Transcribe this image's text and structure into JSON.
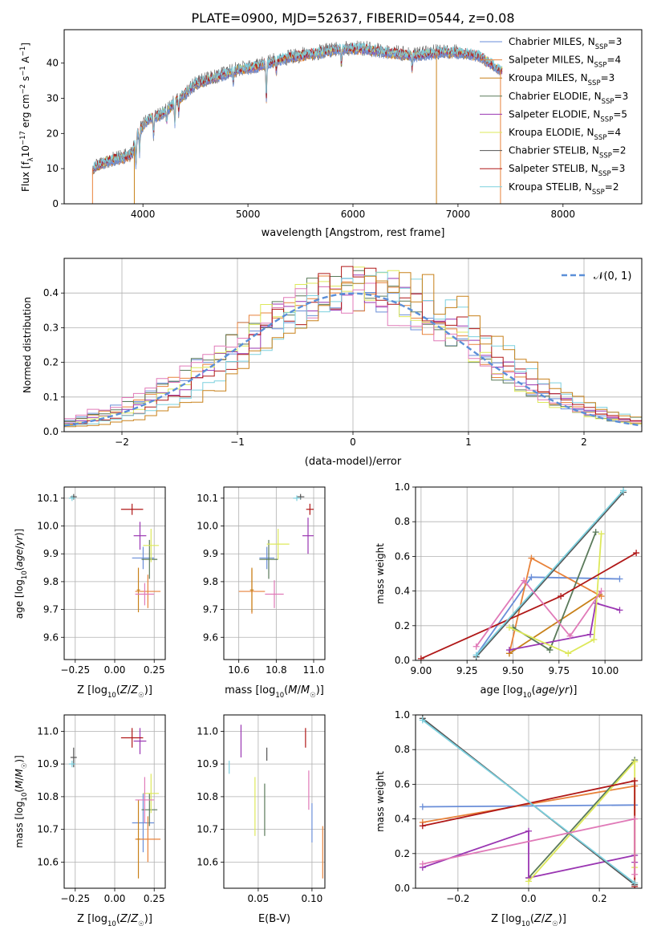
{
  "figure": {
    "title": "PLATE=0900, MJD=52637, FIBERID=0544, z=0.08"
  },
  "colors": {
    "Chabrier MILES": "#6a8ed8",
    "Salpeter MILES": "#e8823a",
    "Kroupa MILES": "#c8811a",
    "Chabrier ELODIE": "#5a7a5a",
    "Salpeter ELODIE": "#9a36b2",
    "Kroupa ELODIE": "#dde85a",
    "Chabrier STELIB": "#555555",
    "Salpeter STELIB": "#b01818",
    "Kroupa STELIB": "#7cd0de",
    "pink": "#e07ab8",
    "gauss": "#5b8fd8"
  },
  "chart_data": [
    {
      "id": "spectrum",
      "type": "line",
      "title": "PLATE=0900, MJD=52637, FIBERID=0544, z=0.08",
      "xlabel": "wavelength [Angstrom, rest frame]",
      "ylabel": "Flux [f_λ 10^-17 erg cm^-2 s^-1 A^-1]",
      "xlim": [
        3250,
        8750
      ],
      "ylim": [
        0,
        49.5
      ],
      "xticks": [
        4000,
        5000,
        6000,
        7000,
        8000
      ],
      "yticks": [
        0,
        10,
        20,
        30,
        40
      ],
      "grid": false,
      "legend_position": "top-right",
      "legend": [
        {
          "label": "Chabrier MILES, N",
          "sub": "SSP",
          "suffix": "=3",
          "color": "#6a8ed8"
        },
        {
          "label": "Salpeter MILES, N",
          "sub": "SSP",
          "suffix": "=4",
          "color": "#e8823a"
        },
        {
          "label": "Kroupa MILES, N",
          "sub": "SSP",
          "suffix": "=3",
          "color": "#c8811a"
        },
        {
          "label": "Chabrier ELODIE, N",
          "sub": "SSP",
          "suffix": "=3",
          "color": "#5a7a5a"
        },
        {
          "label": "Salpeter ELODIE, N",
          "sub": "SSP",
          "suffix": "=5",
          "color": "#9a36b2"
        },
        {
          "label": "Kroupa ELODIE, N",
          "sub": "SSP",
          "suffix": "=4",
          "color": "#dde85a"
        },
        {
          "label": "Chabrier STELIB, N",
          "sub": "SSP",
          "suffix": "=2",
          "color": "#555555"
        },
        {
          "label": "Salpeter STELIB, N",
          "sub": "SSP",
          "suffix": "=3",
          "color": "#b01818"
        },
        {
          "label": "Kroupa STELIB, N",
          "sub": "SSP",
          "suffix": "=2",
          "color": "#7cd0de"
        }
      ],
      "continuum": [
        [
          3520,
          10
        ],
        [
          3650,
          12
        ],
        [
          3800,
          13
        ],
        [
          3900,
          14
        ],
        [
          3950,
          20
        ],
        [
          4050,
          24
        ],
        [
          4150,
          25
        ],
        [
          4250,
          27
        ],
        [
          4300,
          29
        ],
        [
          4400,
          31
        ],
        [
          4500,
          34
        ],
        [
          4700,
          36
        ],
        [
          4900,
          38
        ],
        [
          5100,
          39
        ],
        [
          5300,
          41
        ],
        [
          5500,
          42
        ],
        [
          5700,
          43
        ],
        [
          5900,
          44
        ],
        [
          6100,
          44
        ],
        [
          6300,
          43
        ],
        [
          6600,
          42
        ],
        [
          6800,
          43
        ],
        [
          7000,
          43
        ],
        [
          7200,
          42
        ],
        [
          7400,
          38
        ]
      ],
      "absorption": [
        [
          3934,
          7
        ],
        [
          3968,
          6
        ],
        [
          4101,
          5
        ],
        [
          4226,
          3
        ],
        [
          4304,
          6
        ],
        [
          4340,
          4
        ],
        [
          4861,
          3
        ],
        [
          5175,
          10
        ],
        [
          5270,
          3
        ],
        [
          5890,
          4
        ],
        [
          6563,
          4
        ]
      ]
    },
    {
      "id": "residual-histogram",
      "type": "histogram",
      "xlabel": "(data-model)/error",
      "ylabel": "Normed distribution",
      "xlim": [
        -2.5,
        2.5
      ],
      "ylim": [
        0,
        0.5
      ],
      "xticks": [
        -2,
        -1,
        0,
        1,
        2
      ],
      "xtick_labels": [
        "−2",
        "−1",
        "0",
        "1",
        "2"
      ],
      "yticks": [
        0.0,
        0.1,
        0.2,
        0.3,
        0.4
      ],
      "grid": true,
      "legend_position": "top-right",
      "gauss_label": "𝒩(0, 1)",
      "bin_width": 0.1,
      "model_centers": [
        -0.08,
        -0.05,
        -0.1,
        0.05,
        -0.02,
        -0.12,
        0.12,
        0.22,
        0.3
      ],
      "model_scales": [
        1.02,
        1.0,
        0.98,
        1.0,
        0.93,
        1.05,
        0.95,
        0.96,
        0.92
      ]
    },
    {
      "id": "age-vs-metallicity",
      "type": "scatter",
      "xlabel": "Z [log10(Z/Z☉)]",
      "ylabel": "age  [log10(age/yr)]",
      "xlim": [
        -0.32,
        0.32
      ],
      "ylim": [
        9.52,
        10.14
      ],
      "xticks": [
        -0.25,
        0.0,
        0.25
      ],
      "xtick_labels": [
        "−0.25",
        "0.00",
        "0.25"
      ],
      "yticks": [
        9.6,
        9.7,
        9.8,
        9.9,
        10.0,
        10.1
      ],
      "grid": true,
      "points": [
        {
          "x": 0.18,
          "xerr": 0.07,
          "y": 9.885,
          "yerr": 0.04,
          "color": "#6a8ed8"
        },
        {
          "x": 0.21,
          "xerr": 0.08,
          "y": 9.765,
          "yerr": 0.06,
          "color": "#e8823a"
        },
        {
          "x": 0.15,
          "xerr": 0.01,
          "y": 9.77,
          "yerr": 0.08,
          "color": "#c8811a"
        },
        {
          "x": 0.22,
          "xerr": 0.05,
          "y": 9.88,
          "yerr": 0.07,
          "color": "#5a7a5a"
        },
        {
          "x": 0.16,
          "xerr": 0.04,
          "y": 9.965,
          "yerr": 0.05,
          "color": "#9a36b2"
        },
        {
          "x": 0.23,
          "xerr": 0.05,
          "y": 9.93,
          "yerr": 0.06,
          "color": "#dde85a"
        },
        {
          "x": -0.26,
          "xerr": 0.02,
          "y": 10.105,
          "yerr": 0.01,
          "color": "#555555"
        },
        {
          "x": 0.11,
          "xerr": 0.07,
          "y": 10.06,
          "yerr": 0.02,
          "color": "#b01818"
        },
        {
          "x": -0.27,
          "xerr": 0.02,
          "y": 10.1,
          "yerr": 0.01,
          "color": "#7cd0de"
        },
        {
          "x": 0.19,
          "xerr": 0.06,
          "y": 9.755,
          "yerr": 0.04,
          "color": "#e07ab8"
        }
      ]
    },
    {
      "id": "age-vs-mass",
      "type": "scatter",
      "xlabel": "mass [log10(M/M☉)]",
      "xlim": [
        10.52,
        11.06
      ],
      "ylim": [
        9.52,
        10.14
      ],
      "xticks": [
        10.6,
        10.8,
        11.0
      ],
      "xtick_labels": [
        "10.6",
        "10.8",
        "11.0"
      ],
      "yticks": [
        9.6,
        9.7,
        9.8,
        9.9,
        10.0,
        10.1
      ],
      "grid": true,
      "points": [
        {
          "x": 10.75,
          "xerr": 0.04,
          "y": 9.885,
          "yerr": 0.04,
          "color": "#6a8ed8"
        },
        {
          "x": 10.67,
          "xerr": 0.07,
          "y": 9.765,
          "yerr": 0.08,
          "color": "#e8823a"
        },
        {
          "x": 10.67,
          "xerr": 0.01,
          "y": 9.77,
          "yerr": 0.08,
          "color": "#c8811a"
        },
        {
          "x": 10.76,
          "xerr": 0.05,
          "y": 9.88,
          "yerr": 0.07,
          "color": "#5a7a5a"
        },
        {
          "x": 10.97,
          "xerr": 0.03,
          "y": 9.965,
          "yerr": 0.065,
          "color": "#9a36b2"
        },
        {
          "x": 10.81,
          "xerr": 0.06,
          "y": 9.935,
          "yerr": 0.055,
          "color": "#dde85a"
        },
        {
          "x": 10.93,
          "xerr": 0.02,
          "y": 10.105,
          "yerr": 0.01,
          "color": "#555555"
        },
        {
          "x": 10.98,
          "xerr": 0.02,
          "y": 10.06,
          "yerr": 0.02,
          "color": "#b01818"
        },
        {
          "x": 10.91,
          "xerr": 0.02,
          "y": 10.1,
          "yerr": 0.01,
          "color": "#7cd0de"
        },
        {
          "x": 10.79,
          "xerr": 0.05,
          "y": 9.755,
          "yerr": 0.05,
          "color": "#e07ab8"
        }
      ]
    },
    {
      "id": "mass-weight-vs-age",
      "type": "line",
      "xlabel": "age  [log10(age/yr)]",
      "ylabel": "mass weight",
      "xlim": [
        8.97,
        10.2
      ],
      "ylim": [
        0,
        1.0
      ],
      "xticks": [
        9.0,
        9.25,
        9.5,
        9.75,
        10.0
      ],
      "xtick_labels": [
        "9.00",
        "9.25",
        "9.50",
        "9.75",
        "10.00"
      ],
      "yticks": [
        0.0,
        0.2,
        0.4,
        0.6,
        0.8,
        1.0
      ],
      "grid": true,
      "series": [
        {
          "color": "#6a8ed8",
          "points": [
            [
              9.3,
              0.03
            ],
            [
              9.6,
              0.48
            ],
            [
              10.08,
              0.47
            ]
          ]
        },
        {
          "color": "#e8823a",
          "points": [
            [
              9.48,
              0.04
            ],
            [
              9.6,
              0.59
            ],
            [
              9.98,
              0.37
            ]
          ]
        },
        {
          "color": "#c8811a",
          "points": [
            [
              9.48,
              0.04
            ],
            [
              9.97,
              0.38
            ]
          ]
        },
        {
          "color": "#5a7a5a",
          "points": [
            [
              9.5,
              0.19
            ],
            [
              9.7,
              0.06
            ],
            [
              9.95,
              0.74
            ]
          ]
        },
        {
          "color": "#9a36b2",
          "points": [
            [
              9.48,
              0.06
            ],
            [
              9.92,
              0.15
            ],
            [
              9.95,
              0.33
            ],
            [
              10.08,
              0.29
            ]
          ]
        },
        {
          "color": "#dde85a",
          "points": [
            [
              9.48,
              0.19
            ],
            [
              9.8,
              0.04
            ],
            [
              9.94,
              0.12
            ],
            [
              9.98,
              0.73
            ]
          ]
        },
        {
          "color": "#555555",
          "points": [
            [
              9.3,
              0.02
            ],
            [
              10.1,
              0.97
            ]
          ]
        },
        {
          "color": "#b01818",
          "points": [
            [
              9.0,
              0.01
            ],
            [
              9.76,
              0.37
            ],
            [
              10.17,
              0.62
            ]
          ]
        },
        {
          "color": "#7cd0de",
          "points": [
            [
              9.3,
              0.03
            ],
            [
              10.1,
              0.98
            ]
          ]
        },
        {
          "color": "#e07ab8",
          "points": [
            [
              9.3,
              0.08
            ],
            [
              9.56,
              0.46
            ],
            [
              9.81,
              0.14
            ],
            [
              9.98,
              0.4
            ]
          ]
        }
      ]
    },
    {
      "id": "mass-vs-metallicity",
      "type": "scatter",
      "xlabel": "Z [log10(Z/Z☉)]",
      "ylabel": "mass [log10(M/M☉)]",
      "xlim": [
        -0.32,
        0.32
      ],
      "ylim": [
        10.52,
        11.05
      ],
      "xticks": [
        -0.25,
        0.0,
        0.25
      ],
      "xtick_labels": [
        "−0.25",
        "0.00",
        "0.25"
      ],
      "yticks": [
        10.6,
        10.7,
        10.8,
        10.9,
        11.0
      ],
      "grid": true,
      "points": [
        {
          "x": 0.18,
          "xerr": 0.07,
          "y": 10.72,
          "yerr": 0.09,
          "color": "#6a8ed8"
        },
        {
          "x": 0.21,
          "xerr": 0.08,
          "y": 10.67,
          "yerr": 0.07,
          "color": "#e8823a"
        },
        {
          "x": 0.15,
          "xerr": 0.01,
          "y": 10.67,
          "yerr": 0.12,
          "color": "#c8811a"
        },
        {
          "x": 0.22,
          "xerr": 0.05,
          "y": 10.76,
          "yerr": 0.05,
          "color": "#5a7a5a"
        },
        {
          "x": 0.16,
          "xerr": 0.04,
          "y": 10.97,
          "yerr": 0.04,
          "color": "#9a36b2"
        },
        {
          "x": 0.23,
          "xerr": 0.05,
          "y": 10.81,
          "yerr": 0.06,
          "color": "#dde85a"
        },
        {
          "x": -0.26,
          "xerr": 0.02,
          "y": 10.92,
          "yerr": 0.03,
          "color": "#555555"
        },
        {
          "x": 0.11,
          "xerr": 0.07,
          "y": 10.98,
          "yerr": 0.03,
          "color": "#b01818"
        },
        {
          "x": -0.27,
          "xerr": 0.02,
          "y": 10.9,
          "yerr": 0.01,
          "color": "#7cd0de"
        },
        {
          "x": 0.19,
          "xerr": 0.06,
          "y": 10.79,
          "yerr": 0.07,
          "color": "#e07ab8"
        }
      ]
    },
    {
      "id": "mass-vs-extinction",
      "type": "scatter",
      "xlabel": "E(B-V)",
      "xlim": [
        0.018,
        0.112
      ],
      "ylim": [
        10.52,
        11.05
      ],
      "xticks": [
        0.05,
        0.1
      ],
      "xtick_labels": [
        "0.05",
        "0.10"
      ],
      "yticks": [
        10.6,
        10.7,
        10.8,
        10.9,
        11.0
      ],
      "grid": true,
      "points": [
        {
          "x": 0.1,
          "y": 10.72,
          "yerr": 0.06,
          "color": "#6a8ed8"
        },
        {
          "x": 0.11,
          "y": 10.63,
          "yerr": 0.08,
          "color": "#e8823a"
        },
        {
          "x": 0.097,
          "y": 10.82,
          "yerr": 0.06,
          "color": "#e07ab8"
        },
        {
          "x": 0.056,
          "y": 10.76,
          "yerr": 0.08,
          "color": "#5a7a5a"
        },
        {
          "x": 0.034,
          "y": 10.97,
          "yerr": 0.05,
          "color": "#9a36b2"
        },
        {
          "x": 0.047,
          "y": 10.77,
          "yerr": 0.09,
          "color": "#dde85a"
        },
        {
          "x": 0.058,
          "y": 10.93,
          "yerr": 0.02,
          "color": "#555555"
        },
        {
          "x": 0.094,
          "y": 10.98,
          "yerr": 0.03,
          "color": "#b01818"
        },
        {
          "x": 0.023,
          "y": 10.89,
          "yerr": 0.02,
          "color": "#7cd0de"
        }
      ]
    },
    {
      "id": "mass-weight-vs-metallicity",
      "type": "line",
      "xlabel": "Z [log10(Z/Z☉)]",
      "ylabel": "mass weight",
      "xlim": [
        -0.32,
        0.32
      ],
      "ylim": [
        0,
        1.0
      ],
      "xticks": [
        -0.2,
        0.0,
        0.2
      ],
      "xtick_labels": [
        "−0.2",
        "0.0",
        "0.2"
      ],
      "yticks": [
        0.0,
        0.2,
        0.4,
        0.6,
        0.8,
        1.0
      ],
      "grid": true,
      "series": [
        {
          "color": "#6a8ed8",
          "points": [
            [
              -0.3,
              0.47
            ],
            [
              0.3,
              0.48
            ]
          ]
        },
        {
          "color": "#e8823a",
          "points": [
            [
              -0.3,
              0.38
            ],
            [
              0.3,
              0.59
            ],
            [
              0.3,
              0.03
            ]
          ]
        },
        {
          "color": "#5a7a5a",
          "points": [
            [
              0.0,
              0.06
            ],
            [
              0.3,
              0.74
            ]
          ]
        },
        {
          "color": "#9a36b2",
          "points": [
            [
              -0.3,
              0.12
            ],
            [
              0.0,
              0.33
            ],
            [
              0.0,
              0.06
            ],
            [
              0.3,
              0.19
            ],
            [
              0.3,
              0.15
            ]
          ]
        },
        {
          "color": "#dde85a",
          "points": [
            [
              0.0,
              0.04
            ],
            [
              0.3,
              0.73
            ],
            [
              0.3,
              0.12
            ]
          ]
        },
        {
          "color": "#555555",
          "points": [
            [
              -0.3,
              0.98
            ],
            [
              0.3,
              0.02
            ]
          ]
        },
        {
          "color": "#b01818",
          "points": [
            [
              -0.3,
              0.36
            ],
            [
              0.3,
              0.62
            ],
            [
              0.3,
              0.01
            ]
          ]
        },
        {
          "color": "#7cd0de",
          "points": [
            [
              -0.3,
              0.97
            ],
            [
              0.3,
              0.03
            ]
          ]
        },
        {
          "color": "#e07ab8",
          "points": [
            [
              -0.3,
              0.14
            ],
            [
              0.3,
              0.4
            ],
            [
              0.3,
              0.08
            ]
          ]
        }
      ]
    }
  ]
}
